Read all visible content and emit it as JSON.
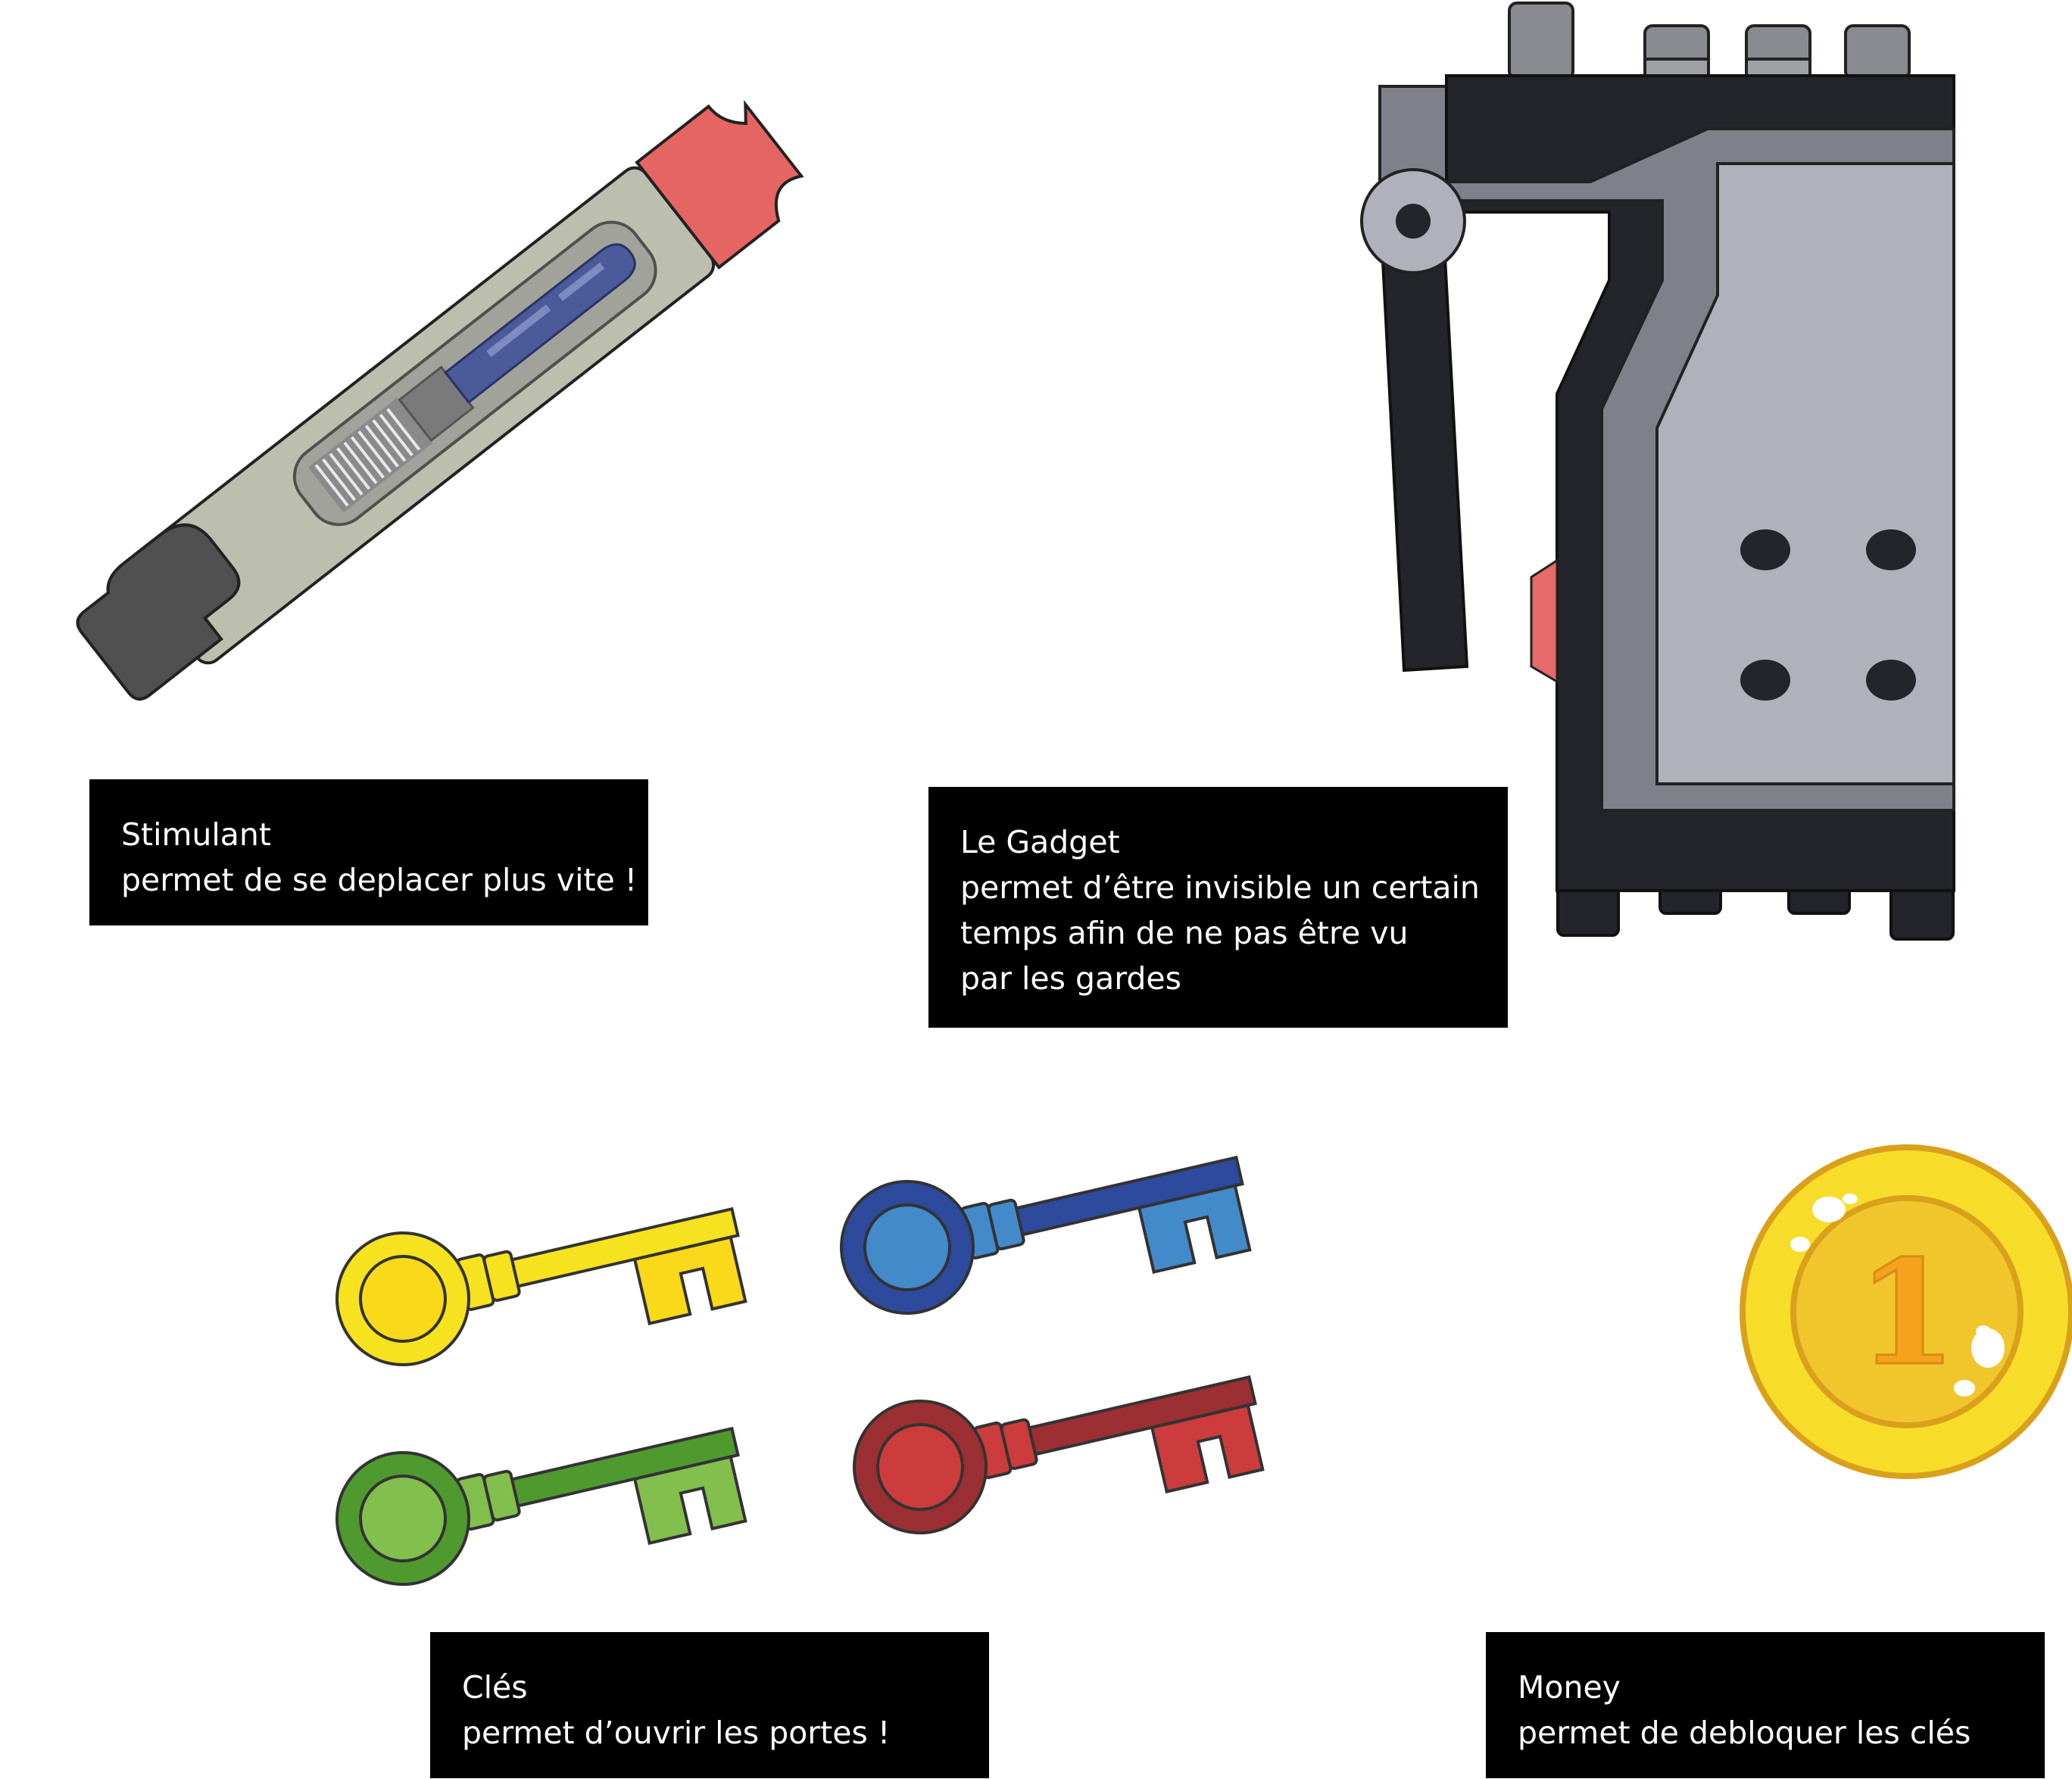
{
  "colors": {
    "background": "#ffffff",
    "caption_bg": "#000000",
    "caption_text": "#ffffff",
    "key_yellow": "#f7e21f",
    "key_blue": "#2e4a9c",
    "key_green": "#4f9a2f",
    "key_red": "#9c2f33",
    "coin_gold": "#f1c62c",
    "stimulant_cap": "#e56563",
    "gadget_body": "#23252a"
  },
  "items": {
    "stimulant": {
      "icon": "stimulant-injector-icon",
      "name": "Stimulant",
      "description": "permet de se deplacer plus vite !"
    },
    "gadget": {
      "icon": "invisibility-gadget-icon",
      "name": "Le Gadget",
      "description_lines": [
        "permet d’être invisible un certain",
        "temps afin de ne pas être vu",
        "par les gardes"
      ]
    },
    "keys": {
      "icon": "keys-icon",
      "name": "Clés",
      "description": "permet d’ouvrir les portes !",
      "variants": [
        "yellow",
        "blue",
        "green",
        "red"
      ]
    },
    "money": {
      "icon": "coin-icon",
      "coin_number": "1",
      "name": "Money",
      "description": "permet de debloquer les clés"
    }
  }
}
